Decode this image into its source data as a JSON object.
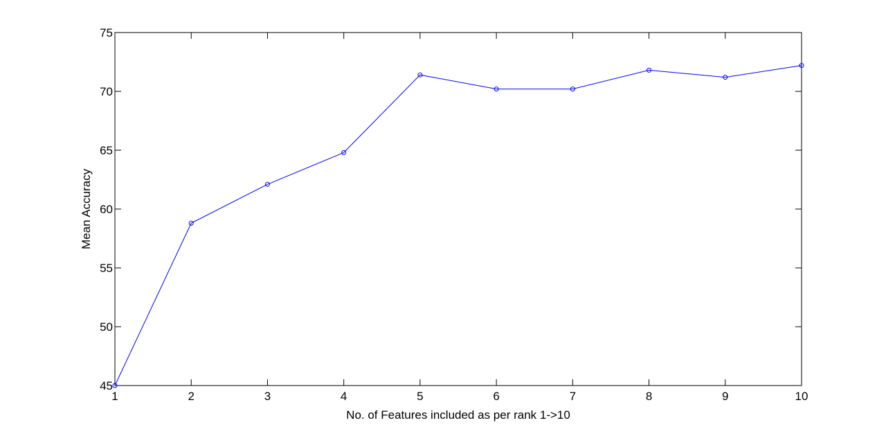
{
  "chart_data": {
    "type": "line",
    "title": "",
    "xlabel": "No. of Features included as per rank 1->10",
    "ylabel": "Mean Accuracy",
    "xlim": [
      1,
      10
    ],
    "ylim": [
      45,
      75
    ],
    "xticks": [
      1,
      2,
      3,
      4,
      5,
      6,
      7,
      8,
      9,
      10
    ],
    "yticks": [
      45,
      50,
      55,
      60,
      65,
      70,
      75
    ],
    "grid": false,
    "legend": "none",
    "series": [
      {
        "x": [
          1,
          2,
          3,
          4,
          5,
          6,
          7,
          8,
          9,
          10
        ],
        "values": [
          45.0,
          58.8,
          62.1,
          64.8,
          71.4,
          70.2,
          70.2,
          71.8,
          71.2,
          72.2
        ],
        "color": "#0000ff",
        "marker": "circle"
      }
    ]
  }
}
